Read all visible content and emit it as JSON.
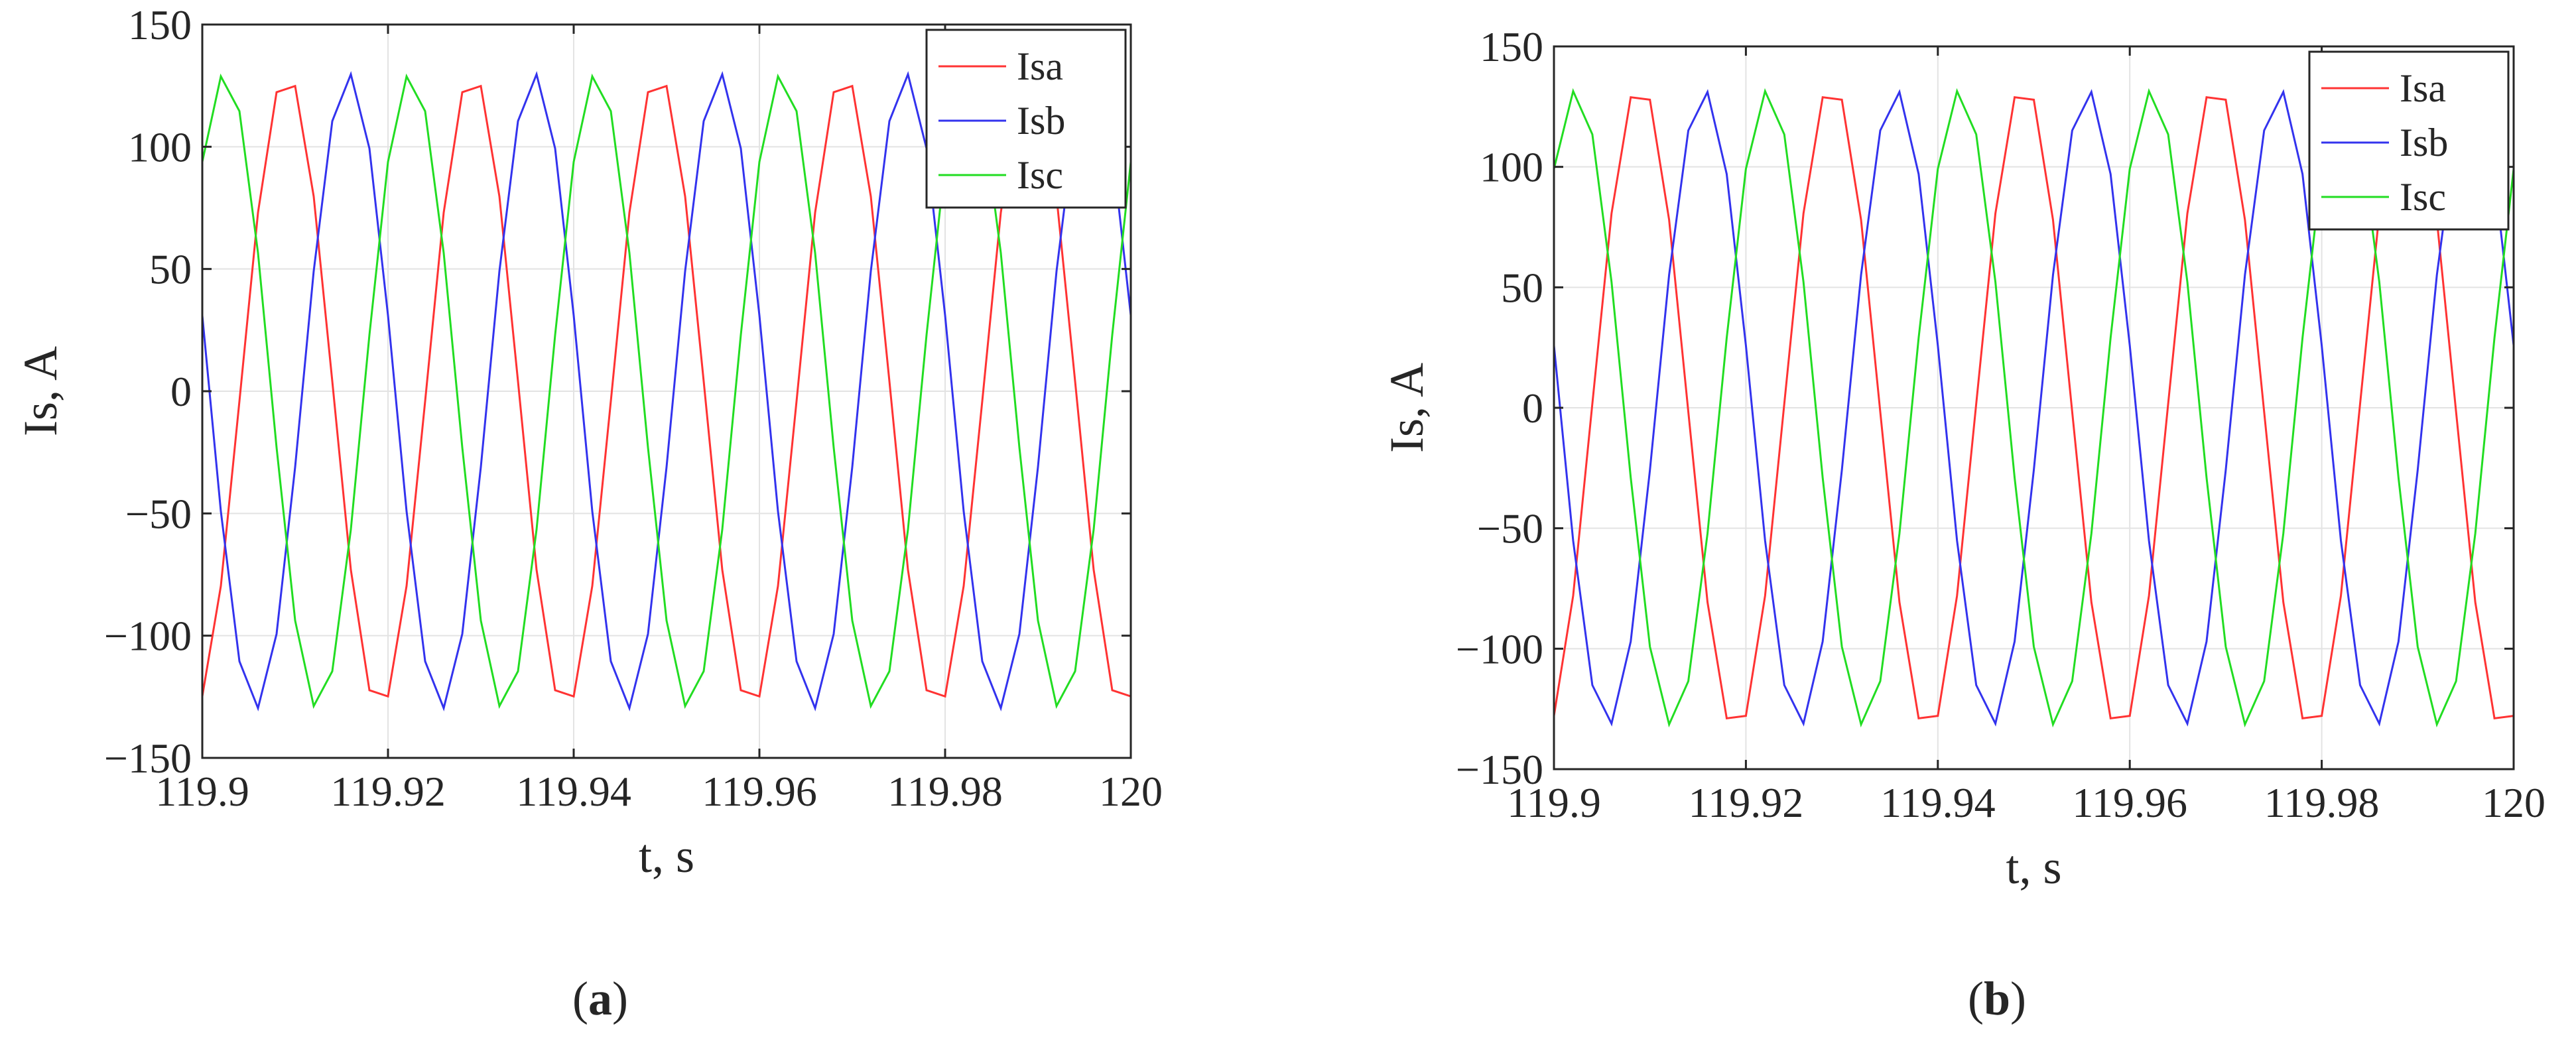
{
  "chart_data": [
    {
      "type": "line",
      "caption": "(a)",
      "caption_parts": [
        "(",
        "a",
        ")"
      ],
      "xlabel": "t, s",
      "ylabel": "Is, A",
      "xlim": [
        119.9,
        120
      ],
      "ylim": [
        -150,
        150
      ],
      "xticks": [
        119.9,
        119.92,
        119.94,
        119.96,
        119.98,
        120
      ],
      "xtick_labels": [
        "119.9",
        "119.92",
        "119.94",
        "119.96",
        "119.98",
        "120"
      ],
      "yticks": [
        150,
        100,
        50,
        0,
        -50,
        -100,
        -150
      ],
      "ytick_labels": [
        "150",
        "100",
        "50",
        "0",
        "−50",
        "−100",
        "−150"
      ],
      "grid": true,
      "legend_position": "top-right",
      "series": [
        {
          "name": "Isa",
          "color": "#ff3333",
          "amplitude": 130,
          "frequency_hz": 50,
          "phase_deg": -73.8
        },
        {
          "name": "Isb",
          "color": "#3333ee",
          "amplitude": 130,
          "frequency_hz": 50,
          "phase_deg": 166.2
        },
        {
          "name": "Isc",
          "color": "#22dd22",
          "amplitude": 130,
          "frequency_hz": 50,
          "phase_deg": 46.2
        }
      ]
    },
    {
      "type": "line",
      "caption": "(b)",
      "caption_parts": [
        "(",
        "b",
        ")"
      ],
      "xlabel": "t, s",
      "ylabel": "Is, A",
      "xlim": [
        119.9,
        120
      ],
      "ylim": [
        -150,
        150
      ],
      "xticks": [
        119.9,
        119.92,
        119.94,
        119.96,
        119.98,
        120
      ],
      "xtick_labels": [
        "119.9",
        "119.92",
        "119.94",
        "119.96",
        "119.98",
        "120"
      ],
      "yticks": [
        150,
        100,
        50,
        0,
        -50,
        -100,
        -150
      ],
      "ytick_labels": [
        "150",
        "100",
        "50",
        "0",
        "−50",
        "−100",
        "−150"
      ],
      "grid": true,
      "legend_position": "top-right",
      "series": [
        {
          "name": "Isa",
          "color": "#ff3333",
          "amplitude": 135,
          "frequency_hz": 50,
          "phase_deg": -71.3
        },
        {
          "name": "Isb",
          "color": "#3333ee",
          "amplitude": 132,
          "frequency_hz": 50,
          "phase_deg": 168.7
        },
        {
          "name": "Isc",
          "color": "#22dd22",
          "amplitude": 132,
          "frequency_hz": 50,
          "phase_deg": 48.7
        }
      ]
    }
  ]
}
